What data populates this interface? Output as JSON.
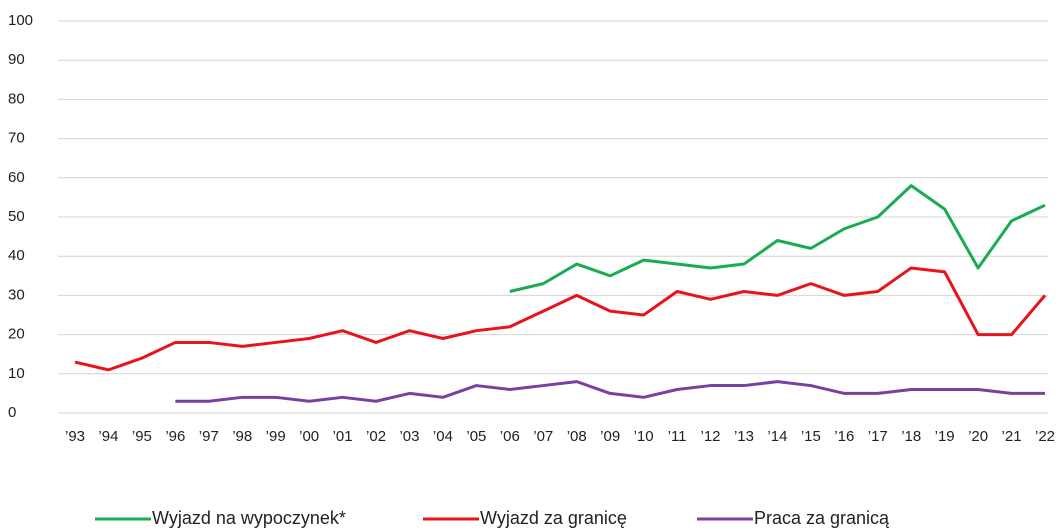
{
  "chart_data": {
    "type": "line",
    "categories": [
      "’93",
      "’94",
      "’95",
      "’96",
      "’97",
      "’98",
      "’99",
      "’00",
      "’01",
      "’02",
      "’03",
      "’04",
      "’05",
      "’06",
      "’07",
      "’08",
      "’09",
      "’10",
      "’11",
      "’12",
      "’13",
      "’14",
      "’15",
      "’16",
      "’17",
      "’18",
      "’19",
      "’20",
      "’21",
      "’22"
    ],
    "series": [
      {
        "name": "Wyjazd na wypoczynek*",
        "color": "#1aab55",
        "values": [
          null,
          null,
          null,
          null,
          null,
          null,
          null,
          null,
          null,
          null,
          null,
          null,
          null,
          31,
          33,
          38,
          35,
          39,
          38,
          37,
          38,
          44,
          42,
          47,
          50,
          58,
          52,
          37,
          49,
          53
        ]
      },
      {
        "name": "Wyjazd za granicę",
        "color": "#e8141c",
        "values": [
          13,
          11,
          14,
          18,
          18,
          17,
          18,
          19,
          21,
          18,
          21,
          19,
          21,
          22,
          26,
          30,
          26,
          25,
          31,
          29,
          31,
          30,
          33,
          30,
          31,
          37,
          36,
          20,
          20,
          30
        ]
      },
      {
        "name": "Praca za granicą",
        "color": "#7b3fa0",
        "values": [
          null,
          null,
          null,
          3,
          3,
          4,
          4,
          3,
          4,
          3,
          5,
          4,
          7,
          6,
          7,
          8,
          5,
          4,
          6,
          7,
          7,
          8,
          7,
          5,
          5,
          6,
          6,
          6,
          5,
          5
        ]
      }
    ],
    "ylim": [
      0,
      100
    ],
    "yticks": [
      0,
      10,
      20,
      30,
      40,
      50,
      60,
      70,
      80,
      90,
      100
    ],
    "grid": true
  }
}
